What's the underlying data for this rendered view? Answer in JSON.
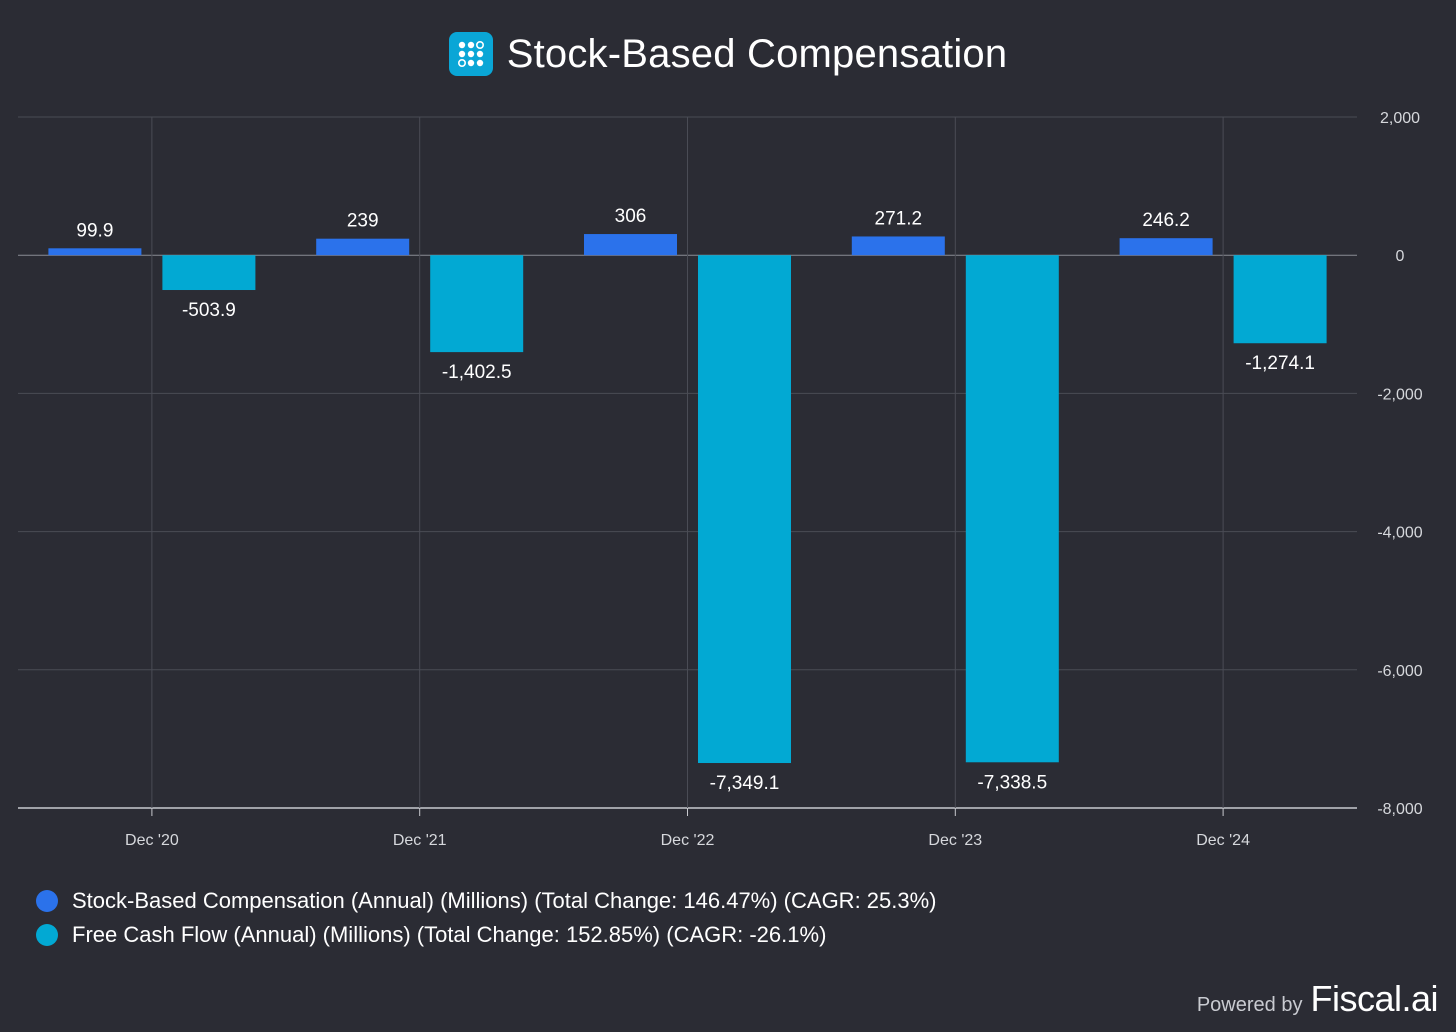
{
  "title": "Stock-Based Compensation",
  "footer": {
    "powered_by": "Powered by",
    "brand": "Fiscal.ai"
  },
  "icons": {
    "logo": "fiscal-dots-logo-icon"
  },
  "colors": {
    "background": "#2b2c34",
    "sbc": "#2b72eb",
    "fcf": "#02a9d3",
    "grid": "#4a4c55",
    "zero_line": "#8a8c94",
    "tick_text": "#d6d8dc"
  },
  "chart_data": {
    "type": "bar",
    "categories": [
      "Dec '20",
      "Dec '21",
      "Dec '22",
      "Dec '23",
      "Dec '24"
    ],
    "series": [
      {
        "name": "Stock-Based Compensation (Annual) (Millions) (Total Change: 146.47%) (CAGR: 25.3%)",
        "values": [
          99.9,
          239,
          306,
          271.2,
          246.2
        ],
        "labels": [
          "99.9",
          "239",
          "306",
          "271.2",
          "246.2"
        ],
        "color": "#2b72eb"
      },
      {
        "name": "Free Cash Flow (Annual) (Millions) (Total Change: 152.85%) (CAGR: -26.1%)",
        "values": [
          -503.9,
          -1402.5,
          -7349.1,
          -7338.5,
          -1274.1
        ],
        "labels": [
          "-503.9",
          "-1,402.5",
          "-7,349.1",
          "-7,338.5",
          "-1,274.1"
        ],
        "color": "#02a9d3"
      }
    ],
    "ylim": [
      -8000,
      2000
    ],
    "yticks": [
      2000,
      0,
      -2000,
      -4000,
      -6000,
      -8000
    ],
    "ytick_labels": [
      "2,000",
      "0",
      "-2,000",
      "-4,000",
      "-6,000",
      "-8,000"
    ],
    "y_axis_side": "right",
    "grid": true,
    "legend_position": "bottom-left"
  }
}
